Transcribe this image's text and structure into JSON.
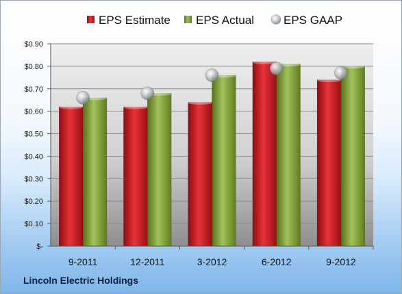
{
  "company": "Lincoln Electric Holdings",
  "chart_data": {
    "type": "bar",
    "categories": [
      "9-2011",
      "12-2011",
      "3-2012",
      "6-2012",
      "9-2012"
    ],
    "series": [
      {
        "name": "EPS Estimate",
        "kind": "bar",
        "color": "#c0151b",
        "values": [
          0.62,
          0.62,
          0.64,
          0.82,
          0.74
        ]
      },
      {
        "name": "EPS Actual",
        "kind": "bar",
        "color": "#7a9a2e",
        "values": [
          0.66,
          0.68,
          0.76,
          0.81,
          0.8
        ]
      },
      {
        "name": "EPS GAAP",
        "kind": "marker",
        "color": "#b8bcc2",
        "values": [
          0.66,
          0.68,
          0.76,
          0.79,
          0.77
        ]
      }
    ],
    "ylim": [
      0,
      0.9
    ],
    "yticks": [
      0,
      0.1,
      0.2,
      0.3,
      0.4,
      0.5,
      0.6,
      0.7,
      0.8,
      0.9
    ],
    "ytick_labels": [
      "$-",
      "$0.10",
      "$0.20",
      "$0.30",
      "$0.40",
      "$0.50",
      "$0.60",
      "$0.70",
      "$0.80",
      "$0.90"
    ],
    "grid": true,
    "legend_position": "top"
  }
}
